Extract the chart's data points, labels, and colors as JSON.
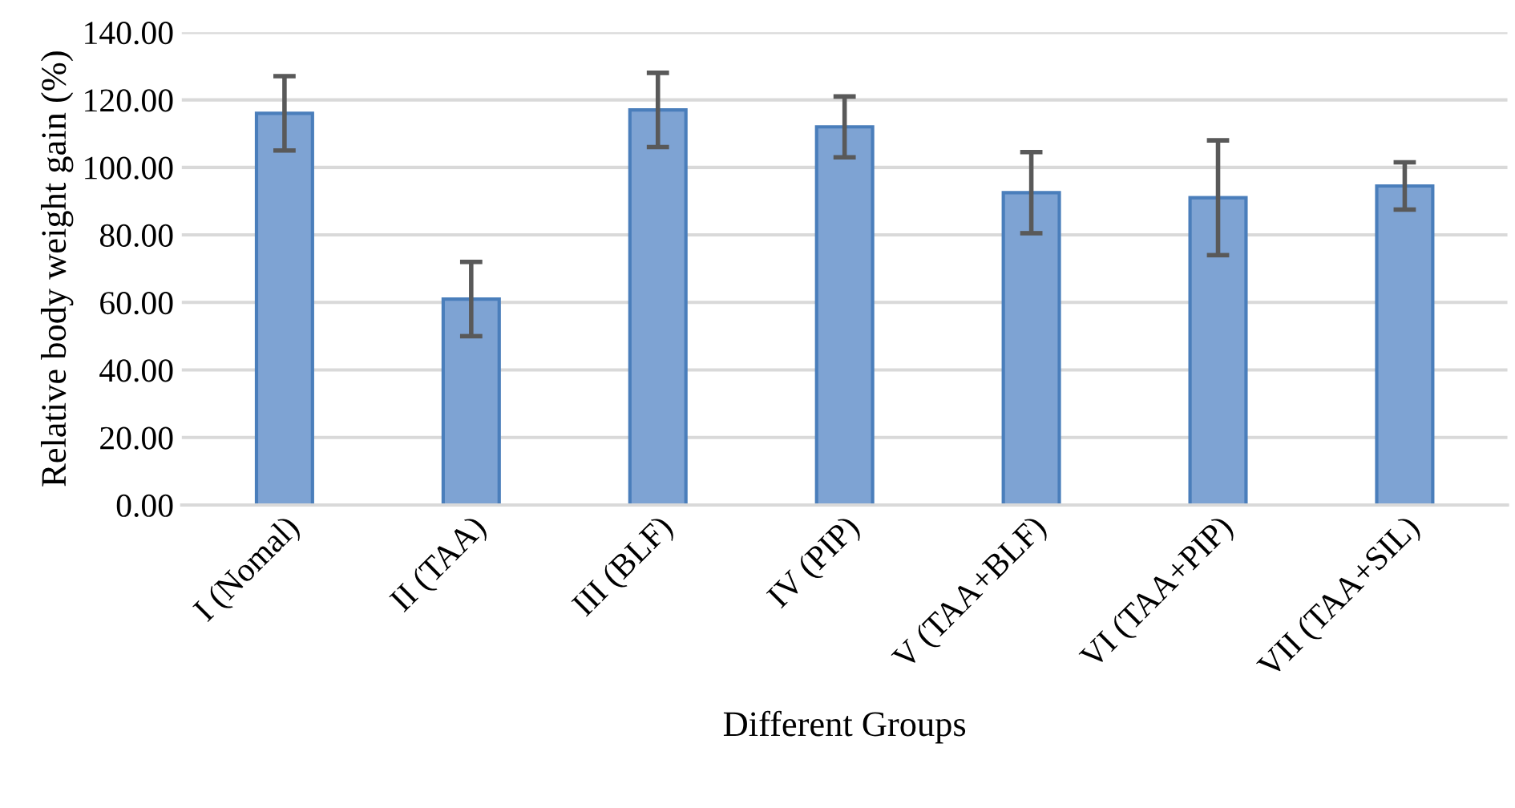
{
  "chart_data": {
    "type": "bar",
    "xlabel": "Different Groups",
    "ylabel": "Relative body weight gain (%)",
    "categories": [
      "I (Nomal)",
      "II (TAA)",
      "III (BLF)",
      "IV (PIP)",
      "V (TAA+BLF)",
      "VI (TAA+PIP)",
      "VII (TAA+SIL)"
    ],
    "values": [
      116,
      61,
      117,
      112,
      92.5,
      91,
      94.5
    ],
    "errors": [
      11,
      11,
      11,
      9,
      12,
      17,
      7
    ],
    "color": "#7ea3d3",
    "ylim": [
      0,
      140
    ],
    "yticks": [
      {
        "value": 0,
        "label": "0.00"
      },
      {
        "value": 20,
        "label": "20.00"
      },
      {
        "value": 40,
        "label": "40.00"
      },
      {
        "value": 60,
        "label": "60.00"
      },
      {
        "value": 80,
        "label": "80.00"
      },
      {
        "value": 100,
        "label": "100.00"
      },
      {
        "value": 120,
        "label": "120.00"
      },
      {
        "value": 140,
        "label": "140.00"
      }
    ],
    "grid": "y"
  }
}
